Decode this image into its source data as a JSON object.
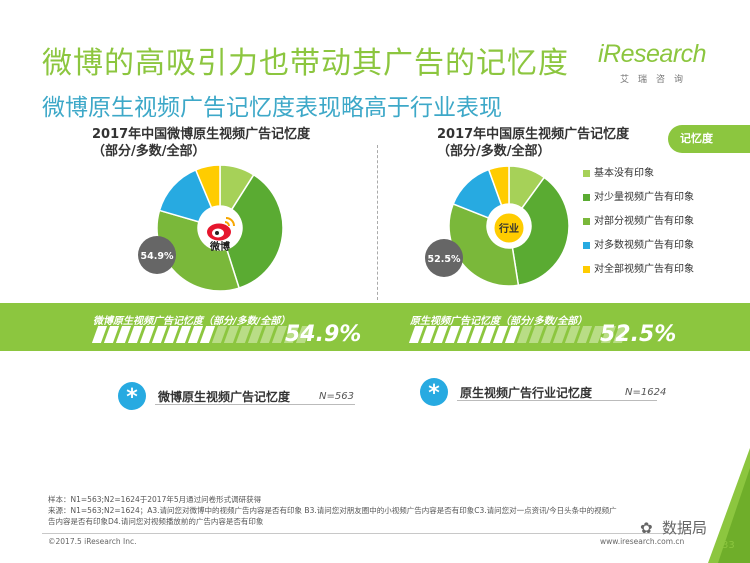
{
  "header": {
    "title": "微博的高吸引力也带动其广告的记忆度",
    "subtitle": "微博原生视频广告记忆度表现略高于行业表现",
    "logo_main": "iResearch",
    "logo_sub": "艾瑞咨询",
    "corner_tag": "记忆度"
  },
  "charts": {
    "left": {
      "title_line1": "2017年中国微博原生视频广告记忆度",
      "title_line2": "（部分/多数/全部）",
      "center_label": "微博",
      "callout": "54.9%"
    },
    "right": {
      "title_line1": "2017年中国原生视频广告记忆度",
      "title_line2": "（部分/多数/全部）",
      "center_label": "行业",
      "callout": "52.5%"
    }
  },
  "colors": {
    "brand_green": "#8cc63f",
    "accent_blue": "#3da8c8",
    "slice_none": "#a6d158",
    "slice_few": "#5aab32",
    "slice_partial": "#7ab83a",
    "slice_most": "#27aae1",
    "slice_all": "#ffcc00"
  },
  "legend": [
    {
      "label": "基本没有印象",
      "color": "#a6d158"
    },
    {
      "label": "对少量视频广告有印象",
      "color": "#5aab32"
    },
    {
      "label": "对部分视频广告有印象",
      "color": "#7ab83a"
    },
    {
      "label": "对多数视频广告有印象",
      "color": "#27aae1"
    },
    {
      "label": "对全部视频广告有印象",
      "color": "#ffcc00"
    }
  ],
  "band": {
    "left": {
      "label": "微博原生视频广告记忆度（部分/多数/全部）",
      "value": "54.9%",
      "fill": 0.549
    },
    "right": {
      "label": "原生视频广告记忆度（部分/多数/全部）",
      "value": "52.5%",
      "fill": 0.525
    }
  },
  "metrics": {
    "left": {
      "icon": "*",
      "label": "微博原生视频广告记忆度",
      "n": "N=563"
    },
    "right": {
      "icon": "*",
      "label": "原生视频广告行业记忆度",
      "n": "N=1624"
    }
  },
  "notes": {
    "sample": "样本：N1=563;N2=1624于2017年5月通过问卷形式调研获得",
    "source_line1": "来源：N1=563;N2=1624；A3.请问您对微博中的视频广告内容是否有印象 B3.请问您对朋友圈中的小视频广告内容是否有印象C3.请问您对一点资讯/今日头条中的视频广",
    "source_line2": "告内容是否有印象D4.请问您对视频播放前的广告内容是否有印象"
  },
  "footer": {
    "copyright": "©2017.5 iResearch Inc.",
    "website": "www.iresearch.com.cn",
    "page": "33",
    "watermark": "数据局"
  },
  "chart_data": [
    {
      "type": "pie",
      "title": "2017年中国微博原生视频广告记忆度",
      "categories": [
        "基本没有印象",
        "对少量视频广告有印象",
        "对部分视频广告有印象",
        "对多数视频广告有印象",
        "对全部视频广告有印象"
      ],
      "values": [
        9.0,
        36.1,
        34.4,
        14.2,
        6.3
      ],
      "highlight_total": 54.9
    },
    {
      "type": "pie",
      "title": "2017年中国原生视频广告记忆度",
      "categories": [
        "基本没有印象",
        "对少量视频广告有印象",
        "对部分视频广告有印象",
        "对多数视频广告有印象",
        "对全部视频广告有印象"
      ],
      "values": [
        10.0,
        37.5,
        33.5,
        13.5,
        5.5
      ],
      "highlight_total": 52.5
    }
  ]
}
